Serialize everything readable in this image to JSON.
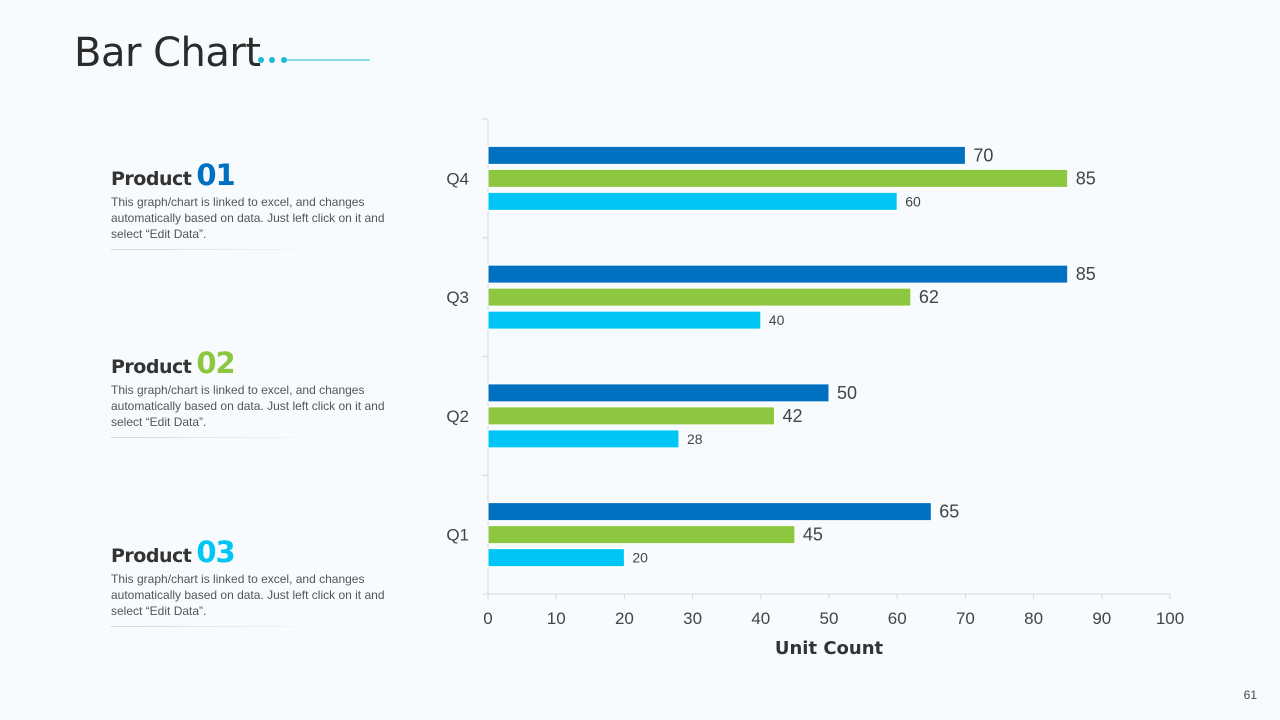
{
  "page": {
    "title": "Bar Chart",
    "page_number": "61"
  },
  "products": [
    {
      "word": "Product",
      "number": "01",
      "color": "#0070c0",
      "description": "This graph/chart is linked to excel, and changes automatically based on data. Just left click on it and select “Edit Data”."
    },
    {
      "word": "Product",
      "number": "02",
      "color": "#8dc63f",
      "description": "This graph/chart is linked to excel, and changes automatically based on data. Just left click on it and select “Edit Data”."
    },
    {
      "word": "Product",
      "number": "03",
      "color": "#00c6f5",
      "description": "This graph/chart is linked to excel, and changes automatically based on data. Just left click on it and select “Edit Data”."
    }
  ],
  "colors": {
    "accent": "#1cbcd6",
    "series_1": "#0070c0",
    "series_2": "#8dc63f",
    "series_3": "#00c6f5"
  },
  "chart_data": {
    "type": "bar",
    "orientation": "horizontal",
    "categories": [
      "Q1",
      "Q2",
      "Q3",
      "Q4"
    ],
    "series": [
      {
        "values": [
          65,
          50,
          85,
          70
        ],
        "color": "#0070c0"
      },
      {
        "values": [
          45,
          42,
          62,
          85
        ],
        "color": "#8dc63f"
      },
      {
        "values": [
          20,
          28,
          40,
          60
        ],
        "color": "#00c6f5"
      }
    ],
    "xlabel": "Unit Count",
    "ylabel": "",
    "xlim": [
      0,
      100
    ],
    "x_ticks": [
      0,
      10,
      20,
      30,
      40,
      50,
      60,
      70,
      80,
      90,
      100
    ],
    "grid": false
  }
}
